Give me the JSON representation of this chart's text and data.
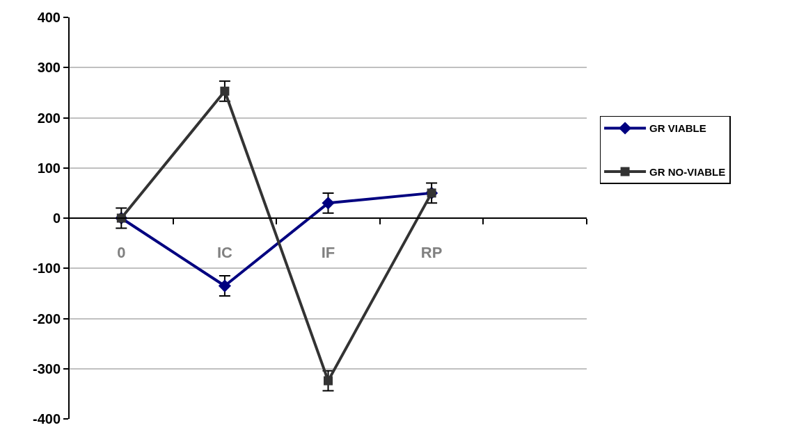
{
  "chart_data": {
    "type": "line",
    "categories": [
      "0",
      "IC",
      "IF",
      "RP",
      null
    ],
    "series": [
      {
        "name": "GR VIABLE",
        "color": "#000080",
        "marker": "diamond",
        "values": [
          0,
          -135,
          30,
          50,
          null
        ],
        "errors": [
          null,
          20,
          20,
          null,
          null
        ]
      },
      {
        "name": "GR NO-VIABLE",
        "color": "#333333",
        "marker": "square",
        "values": [
          0,
          253,
          -324,
          50,
          null
        ],
        "errors": [
          20,
          20,
          20,
          20,
          null
        ]
      }
    ],
    "ylim": [
      -400,
      400
    ],
    "yticks": [
      -400,
      -300,
      -200,
      -100,
      0,
      100,
      200,
      300,
      400
    ],
    "grid": "y",
    "legend": "right",
    "line_style": "solid"
  }
}
